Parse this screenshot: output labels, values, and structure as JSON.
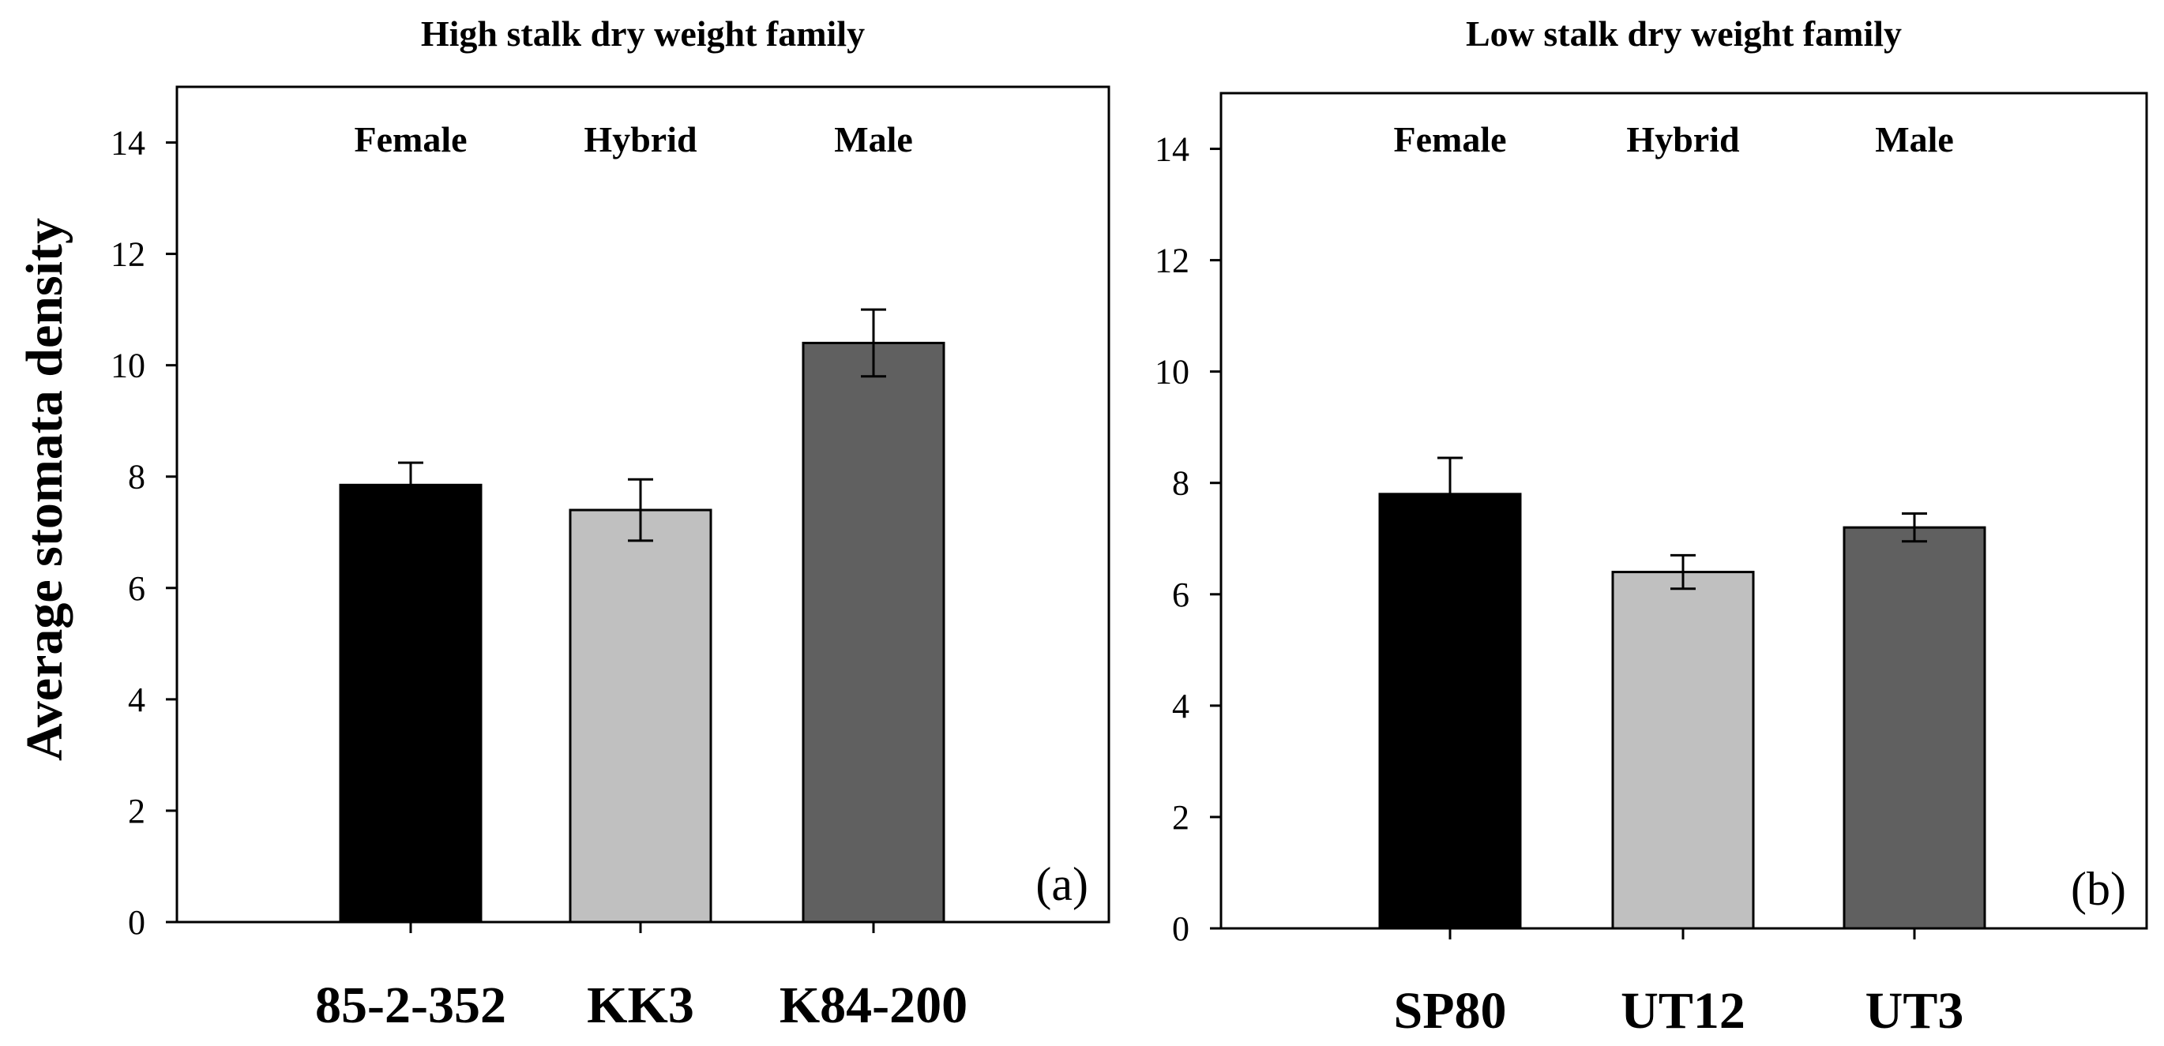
{
  "chart_data": [
    {
      "type": "bar",
      "panel_label": "(a)",
      "title": "High stalk dry weight family",
      "ylabel": "Average stomata density",
      "xlabel": "",
      "ylim": [
        0,
        15
      ],
      "yticks": [
        0,
        2,
        4,
        6,
        8,
        10,
        12,
        14
      ],
      "grid": false,
      "categories": [
        "85-2-352",
        "KK3",
        "K84-200"
      ],
      "group_labels": [
        "Female",
        "Hybrid",
        "Male"
      ],
      "values": [
        7.85,
        7.4,
        10.4
      ],
      "errors": [
        0.4,
        0.55,
        0.6
      ],
      "bar_colors": [
        "#000000",
        "#c0c0c0",
        "#606060"
      ]
    },
    {
      "type": "bar",
      "panel_label": "(b)",
      "title": "Low stalk dry weight family",
      "ylabel": "",
      "xlabel": "",
      "ylim": [
        0,
        15
      ],
      "yticks": [
        0,
        2,
        4,
        6,
        8,
        10,
        12,
        14
      ],
      "grid": false,
      "categories": [
        "SP80",
        "UT12",
        "UT3"
      ],
      "group_labels": [
        "Female",
        "Hybrid",
        "Male"
      ],
      "values": [
        7.8,
        6.4,
        7.2
      ],
      "errors": [
        0.65,
        0.3,
        0.25
      ],
      "bar_colors": [
        "#000000",
        "#c0c0c0",
        "#606060"
      ]
    }
  ]
}
